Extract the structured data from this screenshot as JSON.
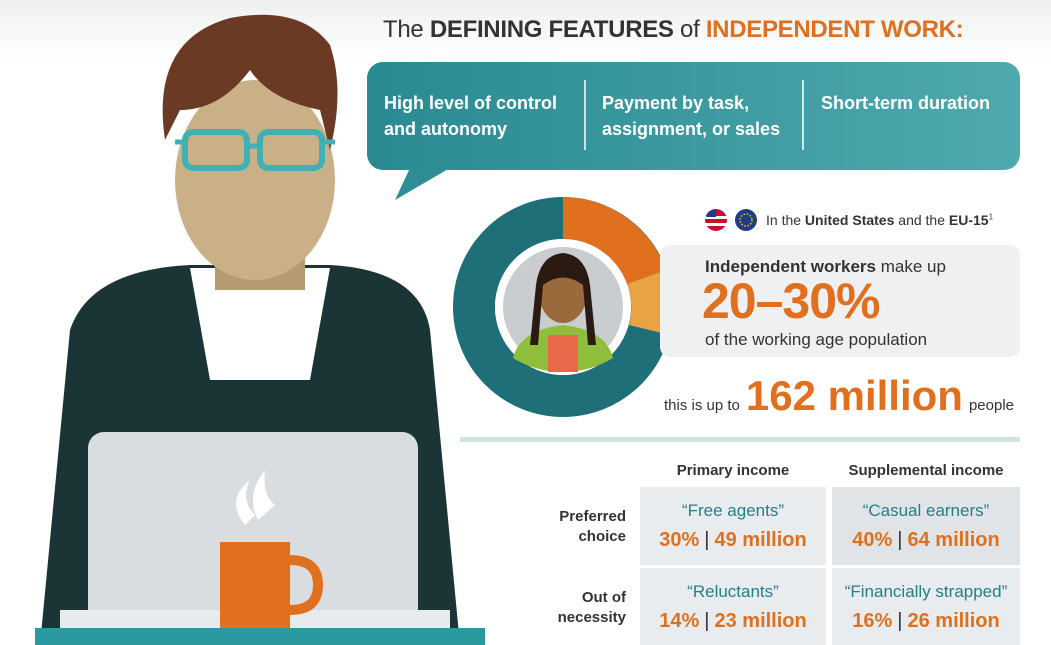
{
  "header": {
    "title_intro": "The",
    "title_bold": "DEFINING FEATURES",
    "title_mid": "of",
    "title_accent": "INDEPENDENT WORK:"
  },
  "features": [
    "High level of control and autonomy",
    "Payment by task, assignment, or sales",
    "Short-term duration"
  ],
  "region": {
    "prefix": "In the",
    "us": "United States",
    "joiner": "and the",
    "eu": "EU-15",
    "footnote": "1"
  },
  "stat": {
    "lead_bold": "Independent workers",
    "lead": "make up",
    "range": "20–30%",
    "tail": "of the working age population"
  },
  "total": {
    "prefix": "this is up to",
    "number": "162 million",
    "suffix": "people"
  },
  "table": {
    "columns": [
      "Primary income",
      "Supplemental income"
    ],
    "separator": "|",
    "rows": [
      {
        "label": "Preferred choice",
        "cells": [
          {
            "name": "“Free agents”",
            "share": "30%",
            "count": "49 million"
          },
          {
            "name": "“Casual earners”",
            "share": "40%",
            "count": "64 million"
          }
        ]
      },
      {
        "label": "Out of necessity",
        "cells": [
          {
            "name": "“Reluctants”",
            "share": "14%",
            "count": "23 million"
          },
          {
            "name": "“Financially strapped”",
            "share": "16%",
            "count": "26 million"
          }
        ]
      }
    ]
  }
}
